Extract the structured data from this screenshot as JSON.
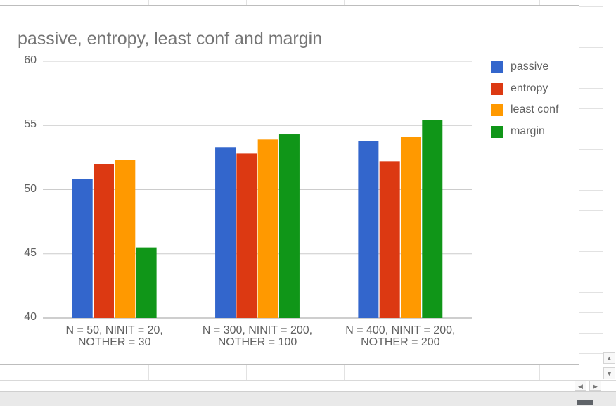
{
  "chart_data": {
    "type": "bar",
    "title": "passive, entropy, least conf and margin",
    "xlabel": "",
    "ylabel": "",
    "ylim": [
      40,
      60
    ],
    "yticks": [
      "60",
      "55",
      "50",
      "45",
      "40"
    ],
    "yticks_values": [
      60,
      55,
      50,
      45,
      40
    ],
    "grid": true,
    "legend_position": "right",
    "categories": [
      [
        "N = 50, NINIT = 20,",
        "NOTHER = 30"
      ],
      [
        "N = 300, NINIT = 200,",
        "NOTHER = 100"
      ],
      [
        "N = 400, NINIT = 200,",
        "NOTHER = 200"
      ]
    ],
    "series": [
      {
        "name": "passive",
        "color": "#3366cc",
        "values": [
          50.8,
          53.3,
          53.8
        ]
      },
      {
        "name": "entropy",
        "color": "#dc3912",
        "values": [
          52.0,
          52.8,
          52.2
        ]
      },
      {
        "name": "least conf",
        "color": "#ff9900",
        "values": [
          52.3,
          53.9,
          54.1
        ]
      },
      {
        "name": "margin",
        "color": "#109618",
        "values": [
          45.5,
          54.3,
          55.4
        ]
      }
    ]
  },
  "ui": {
    "scroll_up_icon": "triangle-up",
    "scroll_down_icon": "triangle-down",
    "scroll_left_icon": "triangle-left",
    "scroll_right_icon": "triangle-right"
  }
}
